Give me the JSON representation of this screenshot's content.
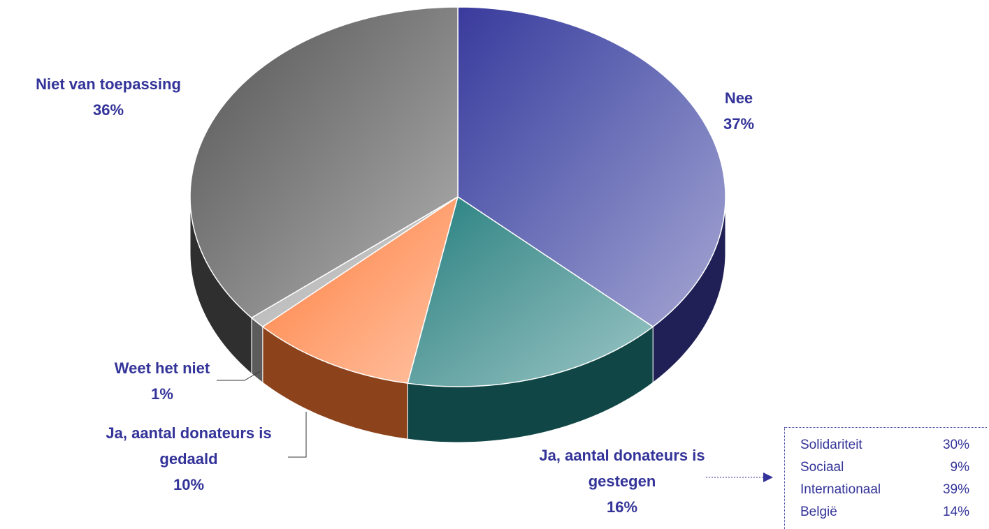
{
  "chart_data": {
    "type": "pie",
    "categories": [
      "Nee",
      "Ja, aantal donateurs is gestegen",
      "Ja, aantal donateurs is gedaald",
      "Weet het niet",
      "Niet van toepassing"
    ],
    "values": [
      37,
      16,
      10,
      1,
      36
    ],
    "value_labels": [
      "37%",
      "16%",
      "10%",
      "1%",
      "36%"
    ],
    "colors": [
      "#3a3a9c",
      "#1f8080",
      "#ff7a33",
      "#a8a8a8",
      "#555555"
    ],
    "breakdown": {
      "rows": [
        [
          "Solidariteit",
          "30%"
        ],
        [
          "Sociaal",
          "9%"
        ],
        [
          "Internationaal",
          "39%"
        ],
        [
          "België",
          "14%"
        ]
      ]
    }
  }
}
